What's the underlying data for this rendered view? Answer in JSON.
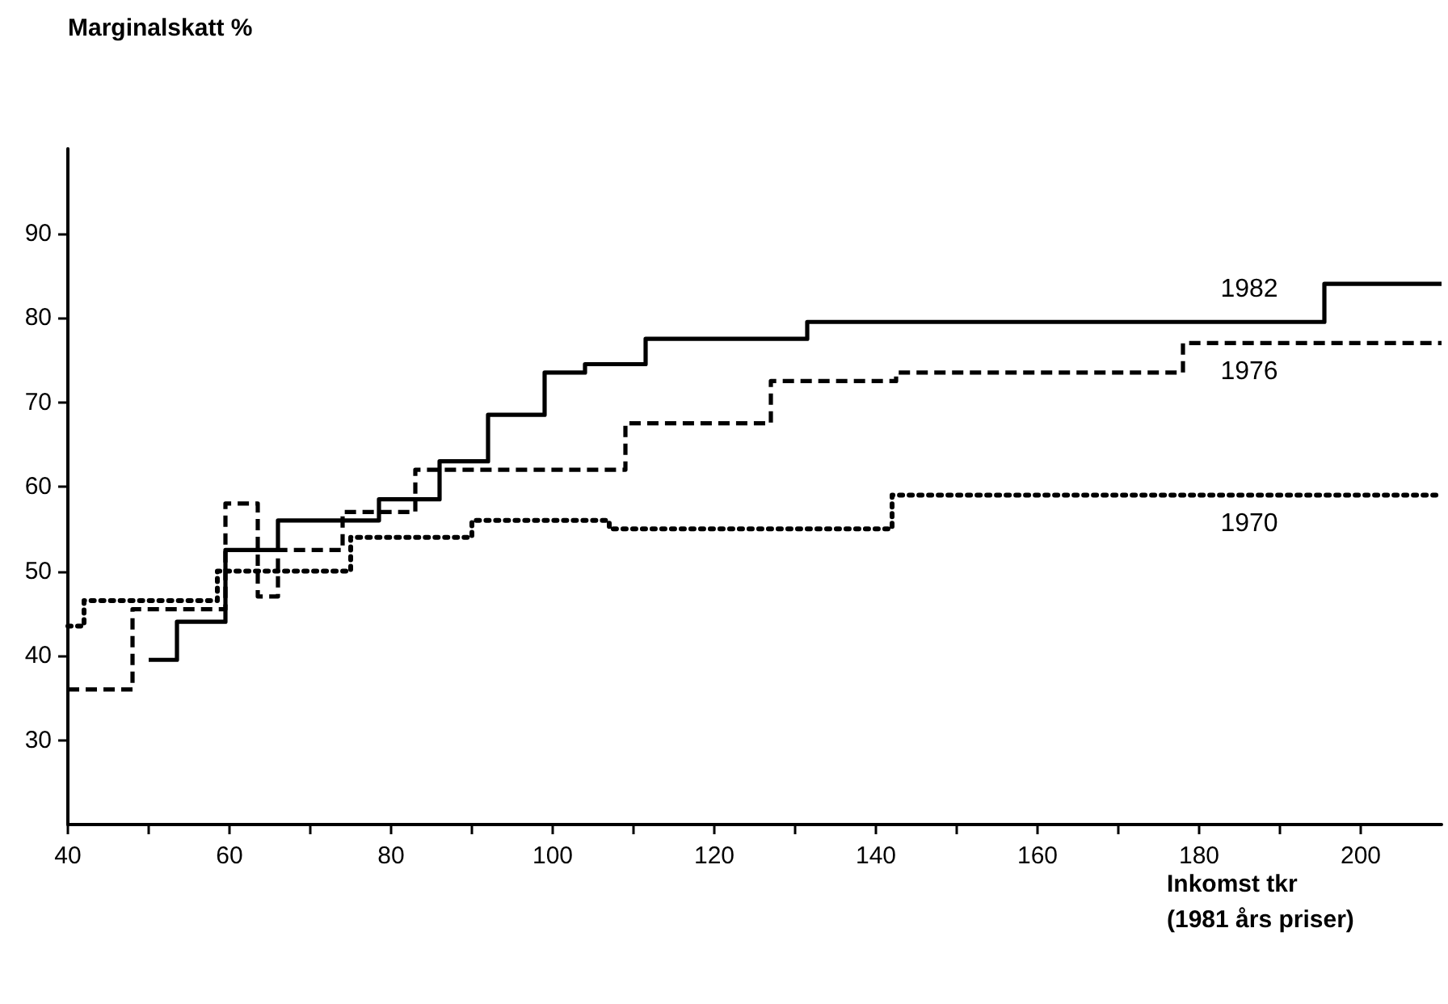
{
  "chart_data": {
    "type": "step",
    "ylabel": "Marginalskatt %",
    "xlabel": "Inkomst tkr\n(1981 års priser)",
    "xlim": [
      40,
      210
    ],
    "ylim": [
      20,
      100
    ],
    "xticks": [
      40,
      {
        "value": 50,
        "label": null
      },
      60,
      {
        "value": 70,
        "label": null
      },
      80,
      {
        "value": 90,
        "label": null
      },
      100,
      {
        "value": 110,
        "label": null
      },
      120,
      {
        "value": 130,
        "label": null
      },
      140,
      {
        "value": 150,
        "label": null
      },
      160,
      {
        "value": 170,
        "label": null
      },
      180,
      {
        "value": 190,
        "label": null
      },
      200
    ],
    "yticks": [
      30,
      40,
      50,
      60,
      70,
      80,
      90
    ],
    "grid": false,
    "legend": false,
    "marker": "none",
    "series": [
      {
        "name": "1982",
        "color": "#000000",
        "line_style": "solid",
        "x": [
          50,
          53.5,
          59.5,
          66,
          78.5,
          86,
          92,
          99,
          104,
          111.5,
          131.5,
          195.5,
          210
        ],
        "values": [
          39.5,
          44,
          52.5,
          56,
          58.5,
          63,
          68.5,
          73.5,
          74.5,
          77.5,
          79.5,
          84,
          84
        ]
      },
      {
        "name": "1976",
        "color": "#000000",
        "line_style": "dashed",
        "x": [
          40,
          48,
          59.5,
          63.5,
          66,
          74,
          83,
          109,
          127,
          142.5,
          178,
          210
        ],
        "values": [
          36,
          45.5,
          58,
          47,
          52.5,
          57,
          62,
          67.5,
          72.5,
          73.5,
          77,
          77
        ]
      },
      {
        "name": "1970",
        "color": "#000000",
        "line_style": "dotted",
        "x": [
          40,
          42,
          58.5,
          75,
          90,
          107,
          142,
          210
        ],
        "values": [
          43.5,
          46.5,
          50,
          54,
          56,
          55,
          59,
          59
        ]
      }
    ]
  }
}
